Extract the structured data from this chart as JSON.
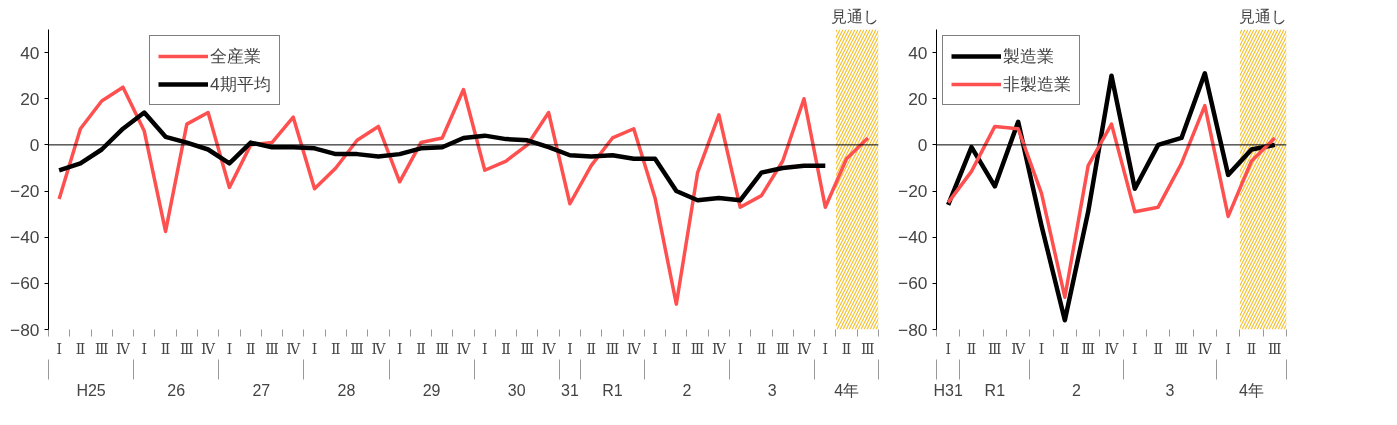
{
  "chart_data": [
    {
      "type": "line",
      "categories": [
        [
          "H25",
          "Ⅰ"
        ],
        [
          null,
          "Ⅱ"
        ],
        [
          null,
          "Ⅲ"
        ],
        [
          null,
          "Ⅳ"
        ],
        [
          "26",
          "Ⅰ"
        ],
        [
          null,
          "Ⅱ"
        ],
        [
          null,
          "Ⅲ"
        ],
        [
          null,
          "Ⅳ"
        ],
        [
          "27",
          "Ⅰ"
        ],
        [
          null,
          "Ⅱ"
        ],
        [
          null,
          "Ⅲ"
        ],
        [
          null,
          "Ⅳ"
        ],
        [
          "28",
          "Ⅰ"
        ],
        [
          null,
          "Ⅱ"
        ],
        [
          null,
          "Ⅲ"
        ],
        [
          null,
          "Ⅳ"
        ],
        [
          "29",
          "Ⅰ"
        ],
        [
          null,
          "Ⅱ"
        ],
        [
          null,
          "Ⅲ"
        ],
        [
          null,
          "Ⅳ"
        ],
        [
          "30",
          "Ⅰ"
        ],
        [
          null,
          "Ⅱ"
        ],
        [
          null,
          "Ⅲ"
        ],
        [
          null,
          "Ⅳ"
        ],
        [
          "31",
          "Ⅰ"
        ],
        [
          "R1",
          "Ⅱ"
        ],
        [
          null,
          "Ⅲ"
        ],
        [
          null,
          "Ⅳ"
        ],
        [
          "2",
          "Ⅰ"
        ],
        [
          null,
          "Ⅱ"
        ],
        [
          null,
          "Ⅲ"
        ],
        [
          null,
          "Ⅳ"
        ],
        [
          "3",
          "Ⅰ"
        ],
        [
          null,
          "Ⅱ"
        ],
        [
          null,
          "Ⅲ"
        ],
        [
          null,
          "Ⅳ"
        ],
        [
          "4年",
          "Ⅰ"
        ],
        [
          null,
          "Ⅱ"
        ],
        [
          null,
          "Ⅲ"
        ]
      ],
      "series": [
        {
          "name": "全産業",
          "color": "#ff5050",
          "values": [
            -23.5,
            7,
            19,
            25,
            6,
            -37.5,
            9,
            14,
            -18.5,
            0,
            1,
            12,
            -19,
            -10,
            2,
            8,
            -16,
            1,
            3,
            24,
            -11,
            -7,
            0,
            14,
            -25.5,
            -9,
            3,
            7,
            -23,
            -69,
            -12,
            13,
            -27,
            -22,
            -7,
            20,
            -27,
            -6,
            3
          ]
        },
        {
          "name": "4期平均",
          "color": "#000000",
          "values": [
            -11,
            -8,
            -2,
            7,
            14,
            3.5,
            1,
            -2,
            -8,
            1,
            -1,
            -1,
            -1.5,
            -4,
            -4,
            -5,
            -4,
            -1.5,
            -1,
            3,
            4,
            2.5,
            2,
            -1,
            -4.5,
            -5,
            -4.5,
            -6,
            -6,
            -20,
            -24,
            -23,
            -24,
            -12,
            -10,
            -9,
            -9,
            null,
            null
          ]
        }
      ],
      "ylim": [
        -80,
        50
      ],
      "yticks": [
        {
          "value": -80,
          "label": "−80"
        },
        {
          "value": -60,
          "label": "−60"
        },
        {
          "value": -40,
          "label": "−40"
        },
        {
          "value": -20,
          "label": "−20"
        },
        0,
        20,
        40
      ],
      "ref_lines": [
        {
          "axis": "y",
          "value": 0,
          "color": "#000000"
        }
      ],
      "annotations": [
        "見通し"
      ],
      "grid": false,
      "legend": "top left"
    },
    {
      "type": "line",
      "categories": [
        [
          "H31",
          "Ⅰ"
        ],
        [
          "R1",
          "Ⅱ"
        ],
        [
          null,
          "Ⅲ"
        ],
        [
          null,
          "Ⅳ"
        ],
        [
          "2",
          "Ⅰ"
        ],
        [
          null,
          "Ⅱ"
        ],
        [
          null,
          "Ⅲ"
        ],
        [
          null,
          "Ⅳ"
        ],
        [
          "3",
          "Ⅰ"
        ],
        [
          null,
          "Ⅱ"
        ],
        [
          null,
          "Ⅲ"
        ],
        [
          null,
          "Ⅳ"
        ],
        [
          "4年",
          "Ⅰ"
        ],
        [
          null,
          "Ⅱ"
        ],
        [
          null,
          "Ⅲ"
        ]
      ],
      "series": [
        {
          "name": "製造業",
          "color": "#000000",
          "values": [
            -26,
            -1,
            -18,
            10,
            -35,
            -76,
            -29,
            30,
            -19,
            0,
            3,
            31,
            -13,
            -2,
            0
          ]
        },
        {
          "name": "非製造業",
          "color": "#ff5050",
          "values": [
            -25,
            -11.5,
            8,
            7,
            -21,
            -66,
            -9,
            9,
            -29,
            -27,
            -8,
            17,
            -31,
            -7,
            3
          ]
        }
      ],
      "ylim": [
        -80,
        50
      ],
      "yticks": [
        {
          "value": -80,
          "label": "−80"
        },
        {
          "value": -60,
          "label": "−60"
        },
        {
          "value": -40,
          "label": "−40"
        },
        {
          "value": -20,
          "label": "−20"
        },
        0,
        20,
        40
      ],
      "ref_lines": [
        {
          "axis": "y",
          "value": 0,
          "color": "#000000"
        }
      ],
      "annotations": [
        "見通し"
      ],
      "grid": false,
      "legend": "top left"
    }
  ]
}
